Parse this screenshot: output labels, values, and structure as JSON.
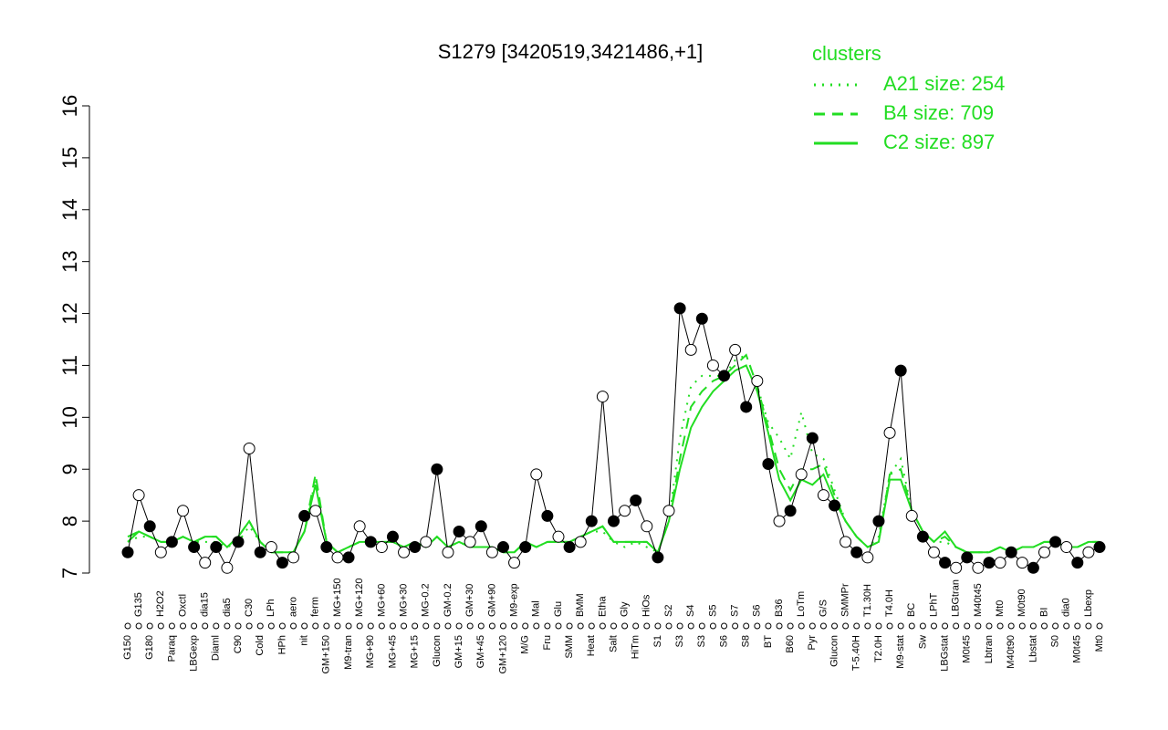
{
  "chart_data": {
    "type": "line",
    "title": "S1279 [3420519,3421486,+1]",
    "legend_title": "clusters",
    "legend": "top-right",
    "ylim": [
      7,
      16
    ],
    "yticks": [
      7,
      8,
      9,
      10,
      11,
      12,
      13,
      14,
      15,
      16
    ],
    "categories": [
      "G150",
      "G135",
      "G180",
      "H2O2",
      "Paraq",
      "Oxctl",
      "LBGexp",
      "dia15",
      "Diaml",
      "dia5",
      "C90",
      "C30",
      "Cold",
      "LPh",
      "HPh",
      "aero",
      "nit",
      "ferm",
      "GM+150",
      "MG+150",
      "M9-tran",
      "MG+120",
      "MG+90",
      "MG+60",
      "MG+45",
      "MG+30",
      "MG+15",
      "MG-0.2",
      "Glucon",
      "GM-0.2",
      "GM+15",
      "GM+30",
      "GM+45",
      "GM+90",
      "GM+120",
      "M9-exp",
      "M/G",
      "Mal",
      "Fru",
      "Glu",
      "SMM",
      "BMM",
      "Heat",
      "Etha",
      "Salt",
      "Gly",
      "HiTm",
      "HiOs",
      "S1",
      "S2",
      "S3",
      "S4",
      "S3",
      "S5",
      "S6",
      "S7",
      "S8",
      "S6",
      "BT",
      "B36",
      "B60",
      "LoTm",
      "Pyr",
      "G/S",
      "Glucon",
      "SMMPr",
      "T-5.40H",
      "T1.30H",
      "T2.0H",
      "T4.0H",
      "M9-stat",
      "BC",
      "Sw",
      "LPhT",
      "LBGstat",
      "LBGtran",
      "M0t45",
      "M40t45",
      "Lbtran",
      "Mt0",
      "M40t90",
      "M0t90",
      "Lbstat",
      "BI",
      "S0",
      "dia0",
      "M0t45",
      "Lbexp",
      "Mt0"
    ],
    "points": {
      "color": "#000000",
      "values": [
        7.4,
        8.5,
        7.9,
        7.4,
        7.6,
        8.2,
        7.5,
        7.2,
        7.5,
        7.1,
        7.6,
        9.4,
        7.4,
        7.5,
        7.2,
        7.3,
        8.1,
        8.2,
        7.5,
        7.3,
        7.3,
        7.9,
        7.6,
        7.5,
        7.7,
        7.4,
        7.5,
        7.6,
        9.0,
        7.4,
        7.8,
        7.6,
        7.9,
        7.4,
        7.5,
        7.2,
        7.5,
        8.9,
        8.1,
        7.7,
        7.5,
        7.6,
        8.0,
        10.4,
        8.0,
        8.2,
        8.4,
        7.9,
        7.3,
        8.2,
        12.1,
        11.3,
        11.9,
        11.0,
        10.8,
        11.3,
        10.2,
        10.7,
        9.1,
        8.0,
        8.2,
        8.9,
        9.6,
        8.5,
        8.3,
        7.6,
        7.4,
        7.3,
        8.0,
        9.7,
        10.9,
        8.1,
        7.7,
        7.4,
        7.2,
        7.1,
        7.3,
        7.1,
        7.2,
        7.2,
        7.4,
        7.2,
        7.1,
        7.4,
        7.6,
        7.5,
        7.2,
        7.4,
        7.5
      ]
    },
    "series": [
      {
        "name": "A21 size: 254",
        "color": "#22dd22",
        "dash": "dotted",
        "values": [
          7.6,
          7.7,
          7.7,
          7.6,
          7.6,
          7.7,
          7.6,
          7.6,
          7.6,
          7.5,
          7.6,
          7.9,
          7.6,
          7.4,
          7.4,
          7.4,
          7.8,
          8.8,
          7.6,
          7.4,
          7.5,
          7.6,
          7.6,
          7.6,
          7.6,
          7.5,
          7.6,
          7.5,
          7.7,
          7.5,
          7.6,
          7.5,
          7.5,
          7.5,
          7.4,
          7.4,
          7.6,
          7.5,
          7.6,
          7.6,
          7.6,
          7.7,
          7.8,
          7.8,
          7.6,
          7.5,
          7.6,
          7.5,
          7.4,
          8.0,
          9.6,
          10.6,
          10.8,
          10.8,
          10.8,
          11.1,
          11.2,
          10.6,
          9.9,
          9.6,
          9.2,
          10.1,
          9.3,
          9.2,
          8.6,
          8.0,
          7.7,
          7.5,
          7.7,
          8.9,
          9.2,
          8.2,
          7.8,
          7.6,
          7.6,
          7.5,
          7.4,
          7.4,
          7.4,
          7.5,
          7.4,
          7.5,
          7.5,
          7.6,
          7.6,
          7.5,
          7.5,
          7.6,
          7.6
        ]
      },
      {
        "name": "B4 size: 709",
        "color": "#22dd22",
        "dash": "dashed",
        "values": [
          7.7,
          7.8,
          7.7,
          7.6,
          7.6,
          7.7,
          7.6,
          7.7,
          7.7,
          7.5,
          7.7,
          8.0,
          7.6,
          7.4,
          7.4,
          7.4,
          7.8,
          8.9,
          7.6,
          7.4,
          7.5,
          7.6,
          7.6,
          7.6,
          7.6,
          7.5,
          7.6,
          7.5,
          7.7,
          7.5,
          7.6,
          7.5,
          7.5,
          7.5,
          7.4,
          7.4,
          7.6,
          7.5,
          7.6,
          7.6,
          7.6,
          7.7,
          7.8,
          7.9,
          7.6,
          7.6,
          7.6,
          7.6,
          7.4,
          8.0,
          9.2,
          10.2,
          10.5,
          10.7,
          10.8,
          11.0,
          11.2,
          10.6,
          9.8,
          9.0,
          8.6,
          9.0,
          9.0,
          9.1,
          8.5,
          8.0,
          7.7,
          7.5,
          7.6,
          8.9,
          9.0,
          8.2,
          7.8,
          7.6,
          7.7,
          7.5,
          7.4,
          7.4,
          7.4,
          7.5,
          7.4,
          7.5,
          7.5,
          7.6,
          7.6,
          7.5,
          7.5,
          7.6,
          7.6
        ]
      },
      {
        "name": "C2 size: 897",
        "color": "#22dd22",
        "dash": "solid",
        "values": [
          7.6,
          7.8,
          7.7,
          7.6,
          7.6,
          7.7,
          7.6,
          7.7,
          7.7,
          7.5,
          7.7,
          8.0,
          7.6,
          7.4,
          7.4,
          7.4,
          7.8,
          8.7,
          7.6,
          7.4,
          7.5,
          7.6,
          7.6,
          7.6,
          7.6,
          7.5,
          7.6,
          7.5,
          7.7,
          7.5,
          7.6,
          7.5,
          7.5,
          7.5,
          7.4,
          7.4,
          7.6,
          7.5,
          7.6,
          7.6,
          7.6,
          7.7,
          7.8,
          7.9,
          7.6,
          7.6,
          7.6,
          7.6,
          7.4,
          8.0,
          9.0,
          9.8,
          10.2,
          10.5,
          10.7,
          10.9,
          11.0,
          10.5,
          9.7,
          8.8,
          8.4,
          8.8,
          8.7,
          8.9,
          8.4,
          8.0,
          7.7,
          7.5,
          7.6,
          8.8,
          8.8,
          8.2,
          7.8,
          7.6,
          7.8,
          7.5,
          7.4,
          7.4,
          7.4,
          7.5,
          7.4,
          7.5,
          7.5,
          7.6,
          7.6,
          7.5,
          7.5,
          7.6,
          7.6
        ]
      }
    ]
  }
}
